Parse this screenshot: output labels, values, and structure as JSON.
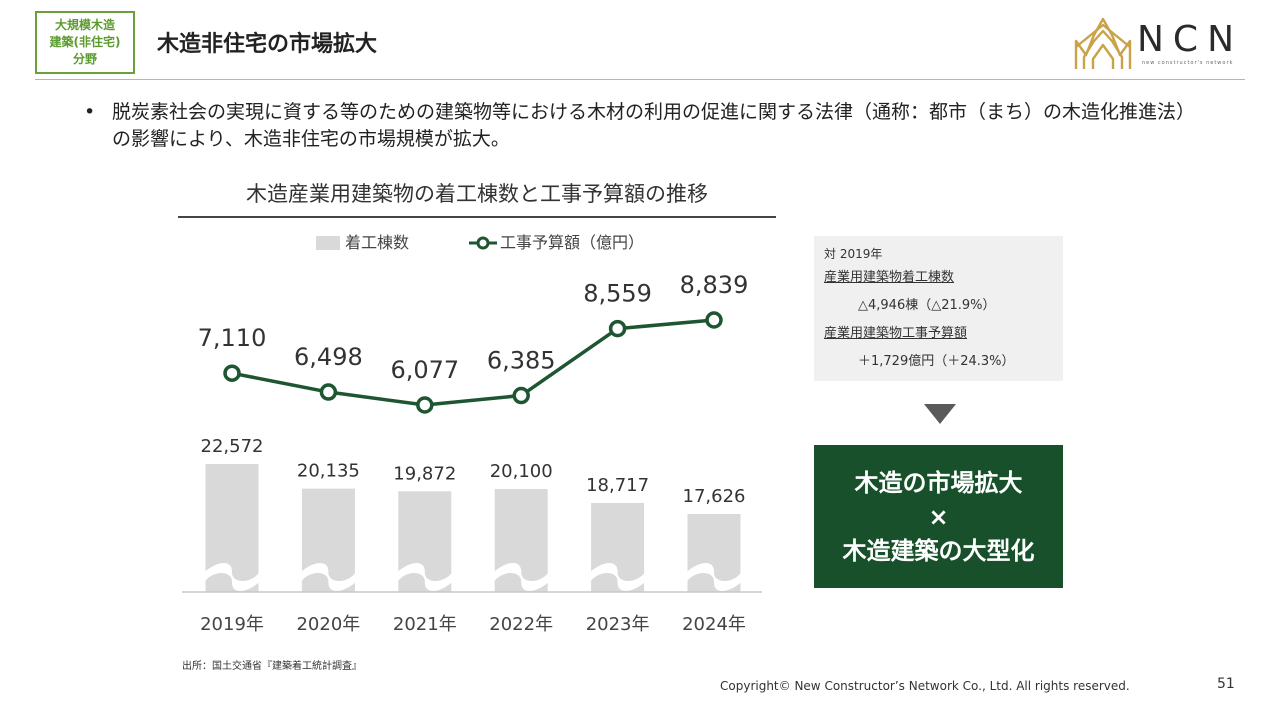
{
  "header": {
    "badge_lines": [
      "大規模木造",
      "建築(非住宅)",
      "分野"
    ],
    "title": "木造非住宅の市場拡大",
    "logo_text": "NCN",
    "logo_subtext": "new constructor's network"
  },
  "bullet": {
    "marker": "•",
    "text": "脱炭素社会の実現に資する等のための建築物等における木材の利用の促進に関する法律（通称：都市（まち）の木造化推進法）の影響により、木造非住宅の市場規模が拡大。"
  },
  "chart_data": {
    "type": "bar+line",
    "title": "木造産業用建築物の着工棟数と工事予算額の推移",
    "categories": [
      "2019年",
      "2020年",
      "2021年",
      "2022年",
      "2023年",
      "2024年"
    ],
    "series": [
      {
        "name": "着工棟数",
        "type": "bar",
        "values": [
          22572,
          20135,
          19872,
          20100,
          18717,
          17626
        ],
        "labels": [
          "22,572",
          "20,135",
          "19,872",
          "20,100",
          "18,717",
          "17,626"
        ],
        "color": "#d9d9d9",
        "axis_break": true
      },
      {
        "name": "工事予算額（億円）",
        "type": "line",
        "values": [
          7110,
          6498,
          6077,
          6385,
          8559,
          8839
        ],
        "labels": [
          "7,110",
          "6,498",
          "6,077",
          "6,385",
          "8,559",
          "8,839"
        ],
        "color": "#1e5631"
      }
    ],
    "legend": "top",
    "grid": false
  },
  "summary": {
    "heading": "対 2019年",
    "item1_label": "産業用建築物着工棟数",
    "item1_value": "△4,946棟（△21.9%）",
    "item2_label": "産業用建築物工事予算額",
    "item2_value": "＋1,729億円（＋24.3%）"
  },
  "conclusion": {
    "line1": "木造の市場拡大",
    "line2": "×",
    "line3": "木造建築の大型化"
  },
  "footer": {
    "source": "出所：国土交通省『建築着工統計調査』",
    "copyright": "Copyright© New Constructor’s Network Co., Ltd. All rights reserved.",
    "page_number": "51"
  },
  "colors": {
    "accent_green": "#1e5631",
    "badge_green": "#6aa03a",
    "bar_gray": "#d9d9d9",
    "panel_gray": "#f0f0f0",
    "logo_gold": "#c9a24a"
  }
}
